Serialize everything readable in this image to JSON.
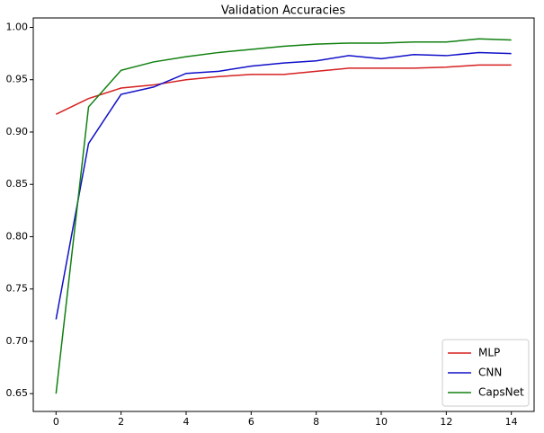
{
  "chart_data": {
    "type": "line",
    "title": "Validation Accuracies",
    "x": [
      0,
      1,
      2,
      3,
      4,
      5,
      6,
      7,
      8,
      9,
      10,
      11,
      12,
      13,
      14
    ],
    "series": [
      {
        "name": "MLP",
        "color": "#d62020",
        "values": [
          0.917,
          0.932,
          0.942,
          0.945,
          0.95,
          0.953,
          0.955,
          0.955,
          0.958,
          0.961,
          0.961,
          0.961,
          0.962,
          0.964,
          0.964
        ]
      },
      {
        "name": "CNN",
        "color": "#1010c8",
        "values": [
          0.721,
          0.889,
          0.936,
          0.943,
          0.956,
          0.958,
          0.963,
          0.966,
          0.968,
          0.973,
          0.97,
          0.974,
          0.973,
          0.976,
          0.975
        ]
      },
      {
        "name": "CapsNet",
        "color": "#108010",
        "values": [
          0.65,
          0.924,
          0.959,
          0.967,
          0.972,
          0.976,
          0.979,
          0.982,
          0.984,
          0.985,
          0.985,
          0.986,
          0.986,
          0.989,
          0.988
        ]
      }
    ],
    "xlim": [
      -0.7,
      14.7
    ],
    "xticks": [
      0,
      2,
      4,
      6,
      8,
      10,
      12,
      14
    ],
    "ylim": [
      0.633,
      1.009
    ],
    "yticks": [
      0.65,
      {
        "value": 0.7,
        "label": "0.70"
      },
      0.75,
      {
        "value": 0.8,
        "label": "0.80"
      },
      0.85,
      {
        "value": 0.9,
        "label": "0.90"
      },
      0.95,
      {
        "value": 1,
        "label": "1.00"
      }
    ],
    "legend": "lower right"
  }
}
